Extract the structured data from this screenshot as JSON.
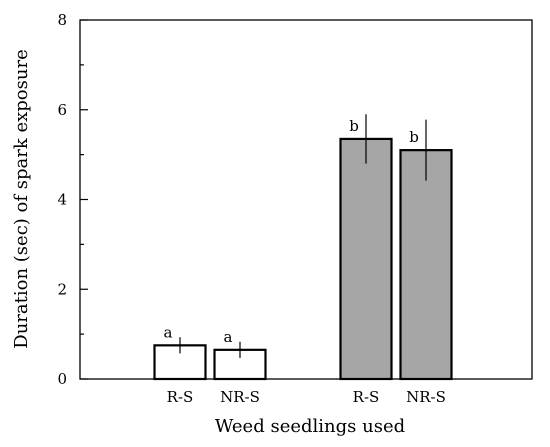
{
  "chart_data": {
    "type": "bar",
    "categories": [
      "R-S",
      "NR-S",
      "R-S",
      "NR-S"
    ],
    "values": [
      0.75,
      0.65,
      5.35,
      5.1
    ],
    "errors": [
      0.18,
      0.18,
      0.55,
      0.68
    ],
    "significance": [
      "a",
      "a",
      "b",
      "b"
    ],
    "bar_colors": [
      "#ffffff",
      "#ffffff",
      "#a6a6a6",
      "#a6a6a6"
    ],
    "bar_stroke": "#000000",
    "xlabel": "Weed seedlings used",
    "ylabel": "Duration (sec) of spark exposure",
    "ylim": [
      0,
      8
    ],
    "yticks": [
      0,
      2,
      4,
      6,
      8
    ],
    "yminor": [
      1,
      3,
      5,
      7
    ],
    "grid": false
  }
}
